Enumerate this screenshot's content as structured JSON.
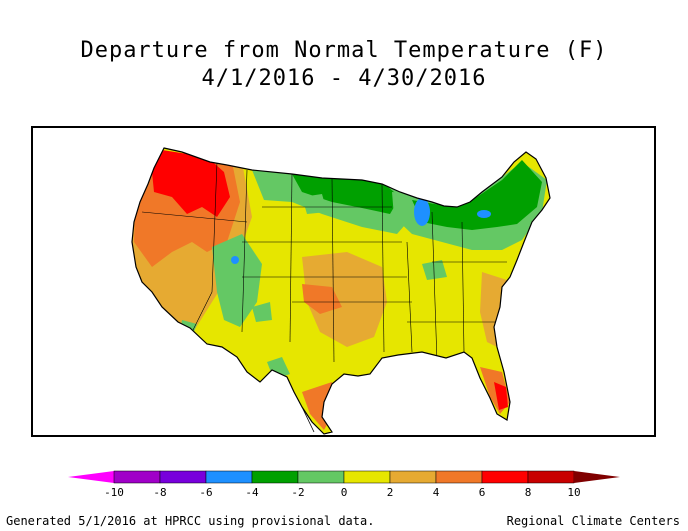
{
  "title": {
    "line1": "Departure from Normal Temperature (F)",
    "line2": "4/1/2016 - 4/30/2016"
  },
  "legend": {
    "ticks": [
      "-10",
      "-8",
      "-6",
      "-4",
      "-2",
      "0",
      "2",
      "4",
      "6",
      "8",
      "10"
    ],
    "bins": [
      {
        "color": "#a000c8"
      },
      {
        "color": "#7800dc"
      },
      {
        "color": "#1e90ff"
      },
      {
        "color": "#00a000"
      },
      {
        "color": "#64c864"
      },
      {
        "color": "#e6e600"
      },
      {
        "color": "#e6aa32"
      },
      {
        "color": "#f07828"
      },
      {
        "color": "#ff0000"
      },
      {
        "color": "#c80000"
      }
    ],
    "low_arrow_color": "#ff00ff",
    "high_arrow_color": "#800000"
  },
  "map": {
    "region": "Contiguous United States",
    "colors": {
      "water": "#1e90ff",
      "yellow": "#e6e600",
      "lightgreen": "#64c864",
      "green": "#00a000",
      "gold": "#e6aa32",
      "orange": "#f07828",
      "red": "#ff0000"
    }
  },
  "footer": {
    "left": "Generated 5/1/2016 at HPRCC using provisional data.",
    "right": "Regional Climate Centers"
  }
}
